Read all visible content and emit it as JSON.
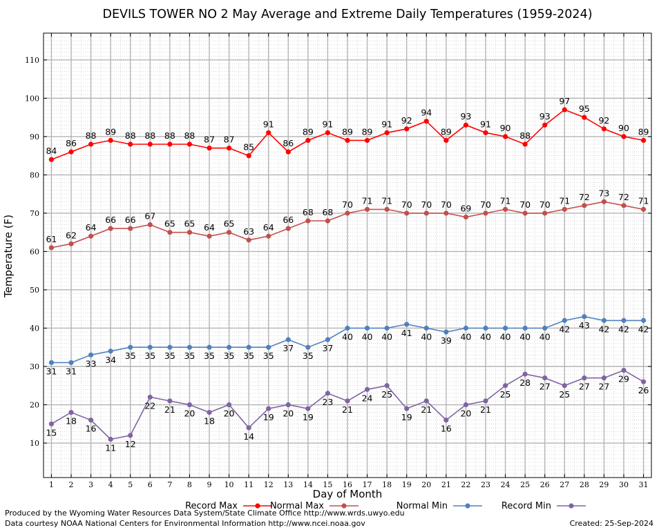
{
  "chart_data": {
    "type": "line",
    "title": "DEVILS TOWER NO 2 May Average and Extreme Daily Temperatures (1959-2024)",
    "xlabel": "Day of Month",
    "ylabel": "Temperature (F)",
    "x": [
      1,
      2,
      3,
      4,
      5,
      6,
      7,
      8,
      9,
      10,
      11,
      12,
      13,
      14,
      15,
      16,
      17,
      18,
      19,
      20,
      21,
      22,
      23,
      24,
      25,
      26,
      27,
      28,
      29,
      30,
      31
    ],
    "xlim": [
      0.6,
      31.4
    ],
    "ylim": [
      1,
      117
    ],
    "yticks": [
      10,
      20,
      30,
      40,
      50,
      60,
      70,
      80,
      90,
      100,
      110
    ],
    "grid": true,
    "legend_position": "bottom",
    "series": [
      {
        "name": "Record Max",
        "color": "#ff0000",
        "label_pos": "above",
        "values": [
          84,
          86,
          88,
          89,
          88,
          88,
          88,
          88,
          87,
          87,
          85,
          91,
          86,
          89,
          91,
          89,
          89,
          91,
          92,
          94,
          89,
          93,
          91,
          90,
          88,
          93,
          97,
          95,
          92,
          90,
          89
        ]
      },
      {
        "name": "Normal Max",
        "color": "#c0504d",
        "label_pos": "above",
        "values": [
          61,
          62,
          64,
          66,
          66,
          67,
          65,
          65,
          64,
          65,
          63,
          64,
          66,
          68,
          68,
          70,
          71,
          71,
          70,
          70,
          70,
          69,
          70,
          71,
          70,
          70,
          71,
          72,
          73,
          72,
          71
        ]
      },
      {
        "name": "Normal Min",
        "color": "#4f81bd",
        "label_pos": "below",
        "values": [
          31,
          31,
          33,
          34,
          35,
          35,
          35,
          35,
          35,
          35,
          35,
          35,
          37,
          35,
          37,
          40,
          40,
          40,
          41,
          40,
          39,
          40,
          40,
          40,
          40,
          40,
          42,
          43,
          42,
          42,
          42
        ]
      },
      {
        "name": "Record Min",
        "color": "#8064a2",
        "label_pos": "below",
        "values": [
          15,
          18,
          16,
          11,
          12,
          22,
          21,
          20,
          18,
          20,
          14,
          19,
          20,
          19,
          23,
          21,
          24,
          25,
          19,
          21,
          16,
          20,
          21,
          25,
          28,
          27,
          25,
          27,
          27,
          29,
          26
        ]
      }
    ]
  },
  "footer": {
    "produced_by": "Produced by the Wyoming Water Resources Data System/State Climate Office http://www.wrds.uwyo.edu",
    "courtesy": "Data courtesy NOAA National Centers for Environmental Information http://www.ncei.noaa.gov",
    "created": "Created:  25-Sep-2024"
  }
}
